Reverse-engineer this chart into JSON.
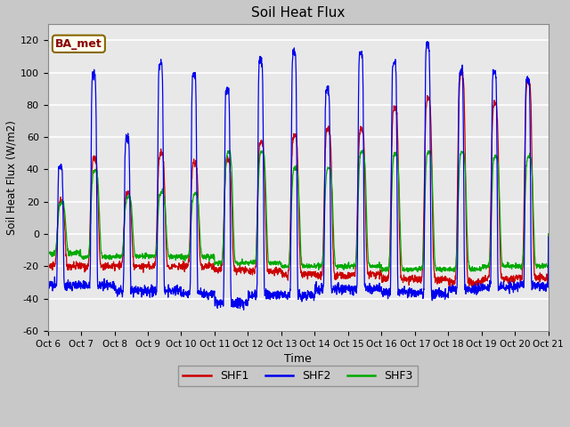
{
  "title": "Soil Heat Flux",
  "xlabel": "Time",
  "ylabel": "Soil Heat Flux (W/m2)",
  "ylim": [
    -60,
    130
  ],
  "yticks": [
    -60,
    -40,
    -20,
    0,
    20,
    40,
    60,
    80,
    100,
    120
  ],
  "xtick_labels": [
    "Oct 6",
    "Oct 7",
    "Oct 8",
    "Oct 9",
    "Oct 10",
    "Oct 11",
    "Oct 12",
    "Oct 13",
    "Oct 14",
    "Oct 15",
    "Oct 16",
    "Oct 17",
    "Oct 18",
    "Oct 19",
    "Oct 20",
    "Oct 21"
  ],
  "shf1_color": "#cc0000",
  "shf2_color": "#0000ee",
  "shf3_color": "#00aa00",
  "fig_bg_color": "#c8c8c8",
  "plot_bg_color": "#e8e8e8",
  "grid_color": "#ffffff",
  "legend_label": "BA_met",
  "legend_bg": "#fffff0",
  "legend_border": "#886600",
  "series_labels": [
    "SHF1",
    "SHF2",
    "SHF3"
  ],
  "n_days": 15,
  "points_per_day": 144,
  "shf2_peaks": [
    42,
    99,
    59,
    106,
    99,
    90,
    108,
    112,
    89,
    113,
    106,
    117,
    101,
    100,
    96
  ],
  "shf2_troughs": [
    -32,
    -32,
    -35,
    -35,
    -37,
    -43,
    -38,
    -38,
    -34,
    -34,
    -36,
    -37,
    -34,
    -33,
    -32
  ],
  "shf1_peaks": [
    20,
    47,
    25,
    50,
    44,
    46,
    57,
    61,
    65,
    65,
    78,
    84,
    100,
    81,
    95
  ],
  "shf1_troughs": [
    -20,
    -20,
    -20,
    -20,
    -20,
    -22,
    -23,
    -25,
    -26,
    -25,
    -28,
    -28,
    -30,
    -28,
    -27
  ],
  "shf3_peaks": [
    19,
    39,
    23,
    26,
    25,
    51,
    51,
    41,
    41,
    51,
    50,
    51,
    51,
    48,
    48
  ],
  "shf3_troughs": [
    -12,
    -14,
    -14,
    -14,
    -14,
    -18,
    -18,
    -20,
    -20,
    -20,
    -22,
    -22,
    -22,
    -20,
    -20
  ]
}
